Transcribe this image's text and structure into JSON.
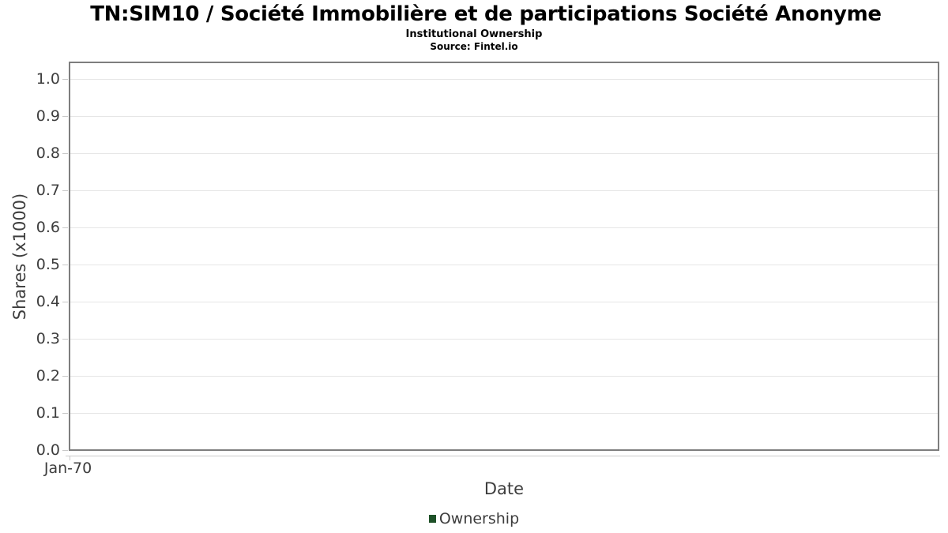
{
  "chart_data": {
    "type": "line",
    "title": "TN:SIM10 / Société Immobilière et de participations Société Anonyme",
    "subtitle": "Institutional Ownership",
    "source": "Source: Fintel.io",
    "xlabel": "Date",
    "ylabel": "Shares (x1000)",
    "ylim": [
      0.0,
      1.05
    ],
    "grid": "horizontal",
    "legend_position": "bottom",
    "y_ticks": [
      {
        "value": 1.0,
        "label": "1.0"
      },
      {
        "value": 0.9,
        "label": "0.9"
      },
      {
        "value": 0.8,
        "label": "0.8"
      },
      {
        "value": 0.7,
        "label": "0.7"
      },
      {
        "value": 0.6,
        "label": "0.6"
      },
      {
        "value": 0.5,
        "label": "0.5"
      },
      {
        "value": 0.4,
        "label": "0.4"
      },
      {
        "value": 0.3,
        "label": "0.3"
      },
      {
        "value": 0.2,
        "label": "0.2"
      },
      {
        "value": 0.1,
        "label": "0.1"
      },
      {
        "value": 0.0,
        "label": "0.0"
      }
    ],
    "x_ticks": [
      {
        "position": 0.0,
        "label": "Jan-70"
      }
    ],
    "series": [
      {
        "name": "Ownership",
        "color": "#1e5128",
        "x": [],
        "values": []
      }
    ]
  },
  "colors": {
    "background": "#ffffff",
    "plot_border": "#7e7e7e",
    "gridline": "#e6e6e6",
    "tick": "#c9c9c9",
    "title_text": "#000000",
    "axis_text": "#3d3d3d",
    "legend_text": "#3d3d3d",
    "series_green": "#1e5128"
  }
}
